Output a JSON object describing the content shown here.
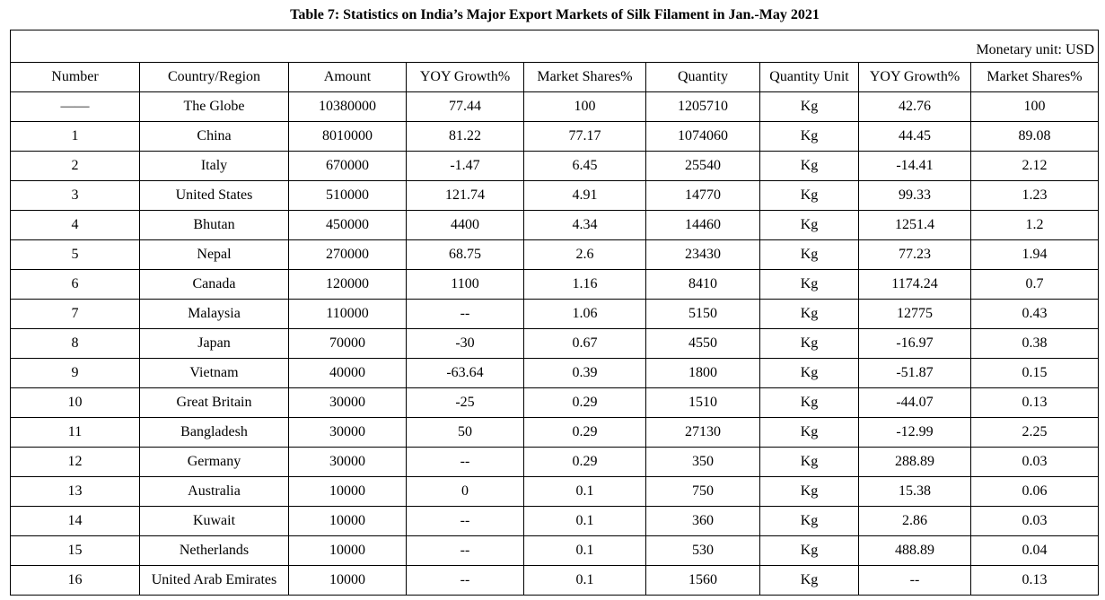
{
  "title": "Table 7: Statistics on India’s Major Export Markets of Silk Filament in Jan.-May 2021",
  "monetary_unit": "Monetary unit: USD",
  "headers": [
    "Number",
    "Country/Region",
    "Amount",
    "YOY Growth%",
    "Market Shares%",
    "Quantity",
    "Quantity Unit",
    "YOY Growth%",
    "Market Shares%"
  ],
  "rows": [
    [
      "——",
      "The Globe",
      "10380000",
      "77.44",
      "100",
      "1205710",
      "Kg",
      "42.76",
      "100"
    ],
    [
      "1",
      "China",
      "8010000",
      "81.22",
      "77.17",
      "1074060",
      "Kg",
      "44.45",
      "89.08"
    ],
    [
      "2",
      "Italy",
      "670000",
      "-1.47",
      "6.45",
      "25540",
      "Kg",
      "-14.41",
      "2.12"
    ],
    [
      "3",
      "United States",
      "510000",
      "121.74",
      "4.91",
      "14770",
      "Kg",
      "99.33",
      "1.23"
    ],
    [
      "4",
      "Bhutan",
      "450000",
      "4400",
      "4.34",
      "14460",
      "Kg",
      "1251.4",
      "1.2"
    ],
    [
      "5",
      "Nepal",
      "270000",
      "68.75",
      "2.6",
      "23430",
      "Kg",
      "77.23",
      "1.94"
    ],
    [
      "6",
      "Canada",
      "120000",
      "1100",
      "1.16",
      "8410",
      "Kg",
      "1174.24",
      "0.7"
    ],
    [
      "7",
      "Malaysia",
      "110000",
      "--",
      "1.06",
      "5150",
      "Kg",
      "12775",
      "0.43"
    ],
    [
      "8",
      "Japan",
      "70000",
      "-30",
      "0.67",
      "4550",
      "Kg",
      "-16.97",
      "0.38"
    ],
    [
      "9",
      "Vietnam",
      "40000",
      "-63.64",
      "0.39",
      "1800",
      "Kg",
      "-51.87",
      "0.15"
    ],
    [
      "10",
      "Great Britain",
      "30000",
      "-25",
      "0.29",
      "1510",
      "Kg",
      "-44.07",
      "0.13"
    ],
    [
      "11",
      "Bangladesh",
      "30000",
      "50",
      "0.29",
      "27130",
      "Kg",
      "-12.99",
      "2.25"
    ],
    [
      "12",
      "Germany",
      "30000",
      "--",
      "0.29",
      "350",
      "Kg",
      "288.89",
      "0.03"
    ],
    [
      "13",
      "Australia",
      "10000",
      "0",
      "0.1",
      "750",
      "Kg",
      "15.38",
      "0.06"
    ],
    [
      "14",
      "Kuwait",
      "10000",
      "--",
      "0.1",
      "360",
      "Kg",
      "2.86",
      "0.03"
    ],
    [
      "15",
      "Netherlands",
      "10000",
      "--",
      "0.1",
      "530",
      "Kg",
      "488.89",
      "0.04"
    ],
    [
      "16",
      "United Arab Emirates",
      "10000",
      "--",
      "0.1",
      "1560",
      "Kg",
      "--",
      "0.13"
    ]
  ]
}
